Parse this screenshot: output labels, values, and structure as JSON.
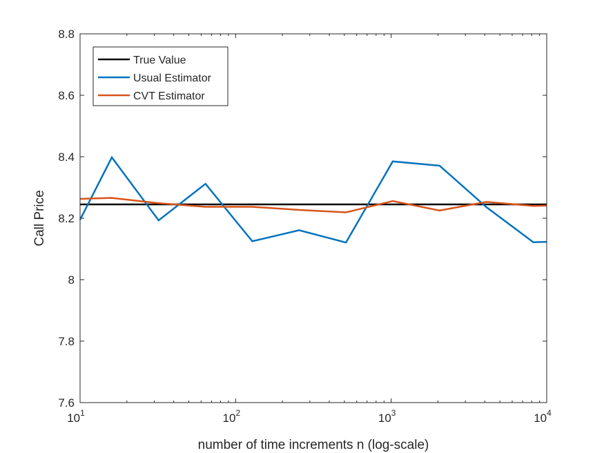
{
  "chart_data": {
    "type": "line",
    "title": "",
    "xlabel": "number of time increments n (log-scale)",
    "ylabel": "Call Price",
    "xscale": "log",
    "xlim": [
      10,
      10000
    ],
    "ylim": [
      7.6,
      8.8
    ],
    "x_ticks": [
      {
        "base": "10",
        "exp": "1",
        "value": 10
      },
      {
        "base": "10",
        "exp": "2",
        "value": 100
      },
      {
        "base": "10",
        "exp": "3",
        "value": 1000
      },
      {
        "base": "10",
        "exp": "4",
        "value": 10000
      }
    ],
    "y_ticks": [
      "7.6",
      "7.8",
      "8",
      "8.2",
      "8.4",
      "8.6",
      "8.8"
    ],
    "grid": false,
    "legend_position": "top-left",
    "series": [
      {
        "name": "True Value",
        "color": "#000000",
        "x": [
          10,
          10000
        ],
        "y": [
          8.245,
          8.245
        ]
      },
      {
        "name": "Usual Estimator",
        "color": "#0072BD",
        "x": [
          10,
          16,
          32,
          64,
          128,
          256,
          512,
          1024,
          2048,
          4096,
          8192,
          10000
        ],
        "y": [
          8.195,
          8.398,
          8.193,
          8.312,
          8.125,
          8.161,
          8.121,
          8.385,
          8.371,
          8.236,
          8.122,
          8.123
        ]
      },
      {
        "name": "CVT Estimator",
        "color": "#D95319",
        "x": [
          10,
          16,
          32,
          64,
          128,
          256,
          512,
          1024,
          2048,
          4096,
          8192,
          10000
        ],
        "y": [
          8.263,
          8.266,
          8.249,
          8.237,
          8.237,
          8.227,
          8.219,
          8.256,
          8.225,
          8.253,
          8.24,
          8.241
        ]
      }
    ]
  }
}
